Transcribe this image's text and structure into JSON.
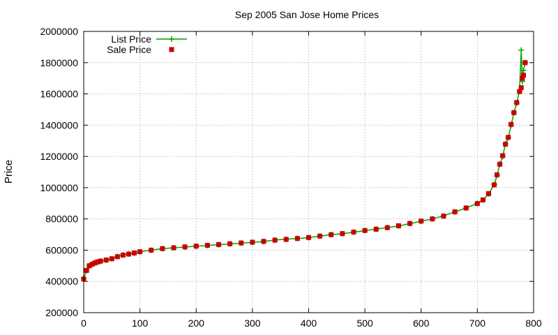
{
  "chart_data": {
    "type": "scatter",
    "title": "Sep 2005 San Jose Home Prices",
    "xlabel": "",
    "ylabel": "Price",
    "xlim": [
      0,
      800
    ],
    "ylim": [
      200000,
      2000000
    ],
    "xticks": [
      0,
      100,
      200,
      300,
      400,
      500,
      600,
      700,
      800
    ],
    "yticks": [
      200000,
      400000,
      600000,
      800000,
      1000000,
      1200000,
      1400000,
      1600000,
      1800000,
      2000000
    ],
    "xtick_labels": [
      "0",
      "100",
      "200",
      "300",
      "400",
      "500",
      "600",
      "700",
      "800"
    ],
    "ytick_labels": [
      "200000",
      "400000",
      "600000",
      "800000",
      "1000000",
      "1200000",
      "1400000",
      "1600000",
      "1800000",
      "2000000"
    ],
    "grid": true,
    "legend_position": "top-left",
    "series": [
      {
        "name": "List Price",
        "style": "linespoints-plus",
        "color": "#00a000",
        "x": [
          0,
          5,
          10,
          15,
          20,
          25,
          30,
          40,
          50,
          60,
          70,
          80,
          90,
          100,
          120,
          140,
          160,
          180,
          200,
          220,
          240,
          260,
          280,
          300,
          320,
          340,
          360,
          380,
          400,
          420,
          440,
          460,
          480,
          500,
          520,
          540,
          560,
          580,
          600,
          620,
          640,
          660,
          680,
          700,
          710,
          720,
          730,
          735,
          740,
          745,
          750,
          755,
          760,
          765,
          770,
          775,
          778,
          780,
          782,
          785
        ],
        "y": [
          420000,
          470000,
          500000,
          510000,
          520000,
          525000,
          530000,
          535000,
          545000,
          560000,
          570000,
          575000,
          580000,
          590000,
          600000,
          610000,
          615000,
          620000,
          625000,
          630000,
          635000,
          640000,
          645000,
          650000,
          655000,
          665000,
          670000,
          675000,
          680000,
          690000,
          700000,
          705000,
          715000,
          725000,
          735000,
          745000,
          755000,
          770000,
          785000,
          800000,
          820000,
          845000,
          870000,
          900000,
          920000,
          960000,
          1020000,
          1080000,
          1150000,
          1200000,
          1280000,
          1320000,
          1400000,
          1480000,
          1540000,
          1620000,
          1880000,
          1680000,
          1750000,
          1800000
        ]
      },
      {
        "name": "Sale Price",
        "style": "points-square",
        "color": "#cc0000",
        "x": [
          0,
          5,
          10,
          15,
          20,
          25,
          30,
          40,
          50,
          60,
          70,
          80,
          90,
          100,
          120,
          140,
          160,
          180,
          200,
          220,
          240,
          260,
          280,
          300,
          320,
          340,
          360,
          380,
          400,
          420,
          440,
          460,
          480,
          500,
          520,
          540,
          560,
          580,
          600,
          620,
          640,
          660,
          680,
          700,
          710,
          720,
          730,
          735,
          740,
          745,
          750,
          755,
          760,
          765,
          770,
          775,
          778,
          780,
          782,
          785
        ],
        "y": [
          415000,
          470000,
          500000,
          510000,
          518000,
          525000,
          530000,
          537000,
          545000,
          558000,
          568000,
          575000,
          582000,
          590000,
          600000,
          610000,
          615000,
          621000,
          626000,
          631000,
          636000,
          641000,
          646000,
          651000,
          656000,
          664000,
          669000,
          675000,
          681000,
          690000,
          699000,
          706000,
          716000,
          726000,
          734000,
          744000,
          756000,
          771000,
          786000,
          800000,
          818000,
          845000,
          870000,
          898000,
          922000,
          962000,
          1018000,
          1082000,
          1150000,
          1205000,
          1278000,
          1322000,
          1405000,
          1480000,
          1545000,
          1615000,
          1640000,
          1700000,
          1720000,
          1800000
        ]
      }
    ]
  }
}
